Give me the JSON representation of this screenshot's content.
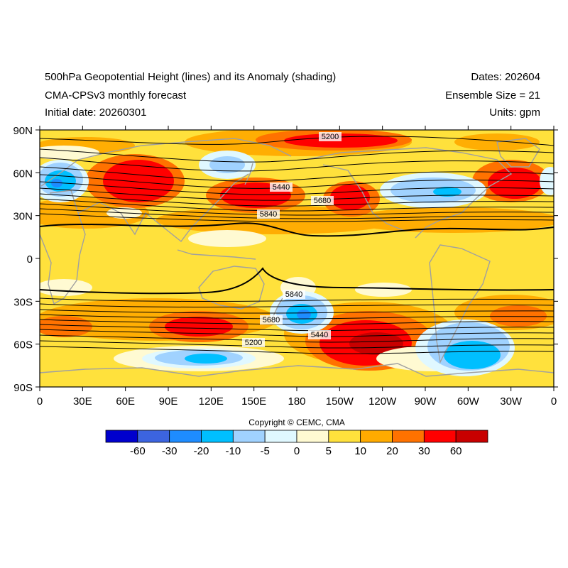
{
  "header": {
    "title": "500hPa Geopotential Height (lines) and its Anomaly (shading)",
    "subtitle": "CMA-CPSv3 monthly forecast",
    "initial": "Initial date: 20260301",
    "dates": "Dates: 202604",
    "ensemble": "Ensemble Size = 21",
    "units": "Units: gpm"
  },
  "axes": {
    "lat_labels": [
      "90N",
      "60N",
      "30N",
      "0",
      "30S",
      "60S",
      "90S"
    ],
    "lon_labels": [
      "0",
      "30E",
      "60E",
      "90E",
      "120E",
      "150E",
      "180",
      "150W",
      "120W",
      "90W",
      "60W",
      "30W",
      "0"
    ]
  },
  "contour_labels": [
    "5200",
    "5440",
    "5680",
    "5840",
    "5840",
    "5680",
    "5440",
    "5200"
  ],
  "colorbar": {
    "colors": [
      "#0000cd",
      "#3c64e0",
      "#1e8cff",
      "#00bfff",
      "#a0d2ff",
      "#e0f8ff",
      "#fffad2",
      "#ffe13c",
      "#ffab00",
      "#ff7200",
      "#ff0000",
      "#c80000"
    ],
    "labels": [
      "-60",
      "-30",
      "-20",
      "-10",
      "-5",
      "0",
      "5",
      "10",
      "20",
      "30",
      "60"
    ]
  },
  "copyright": "Copyright © CEMC, CMA"
}
